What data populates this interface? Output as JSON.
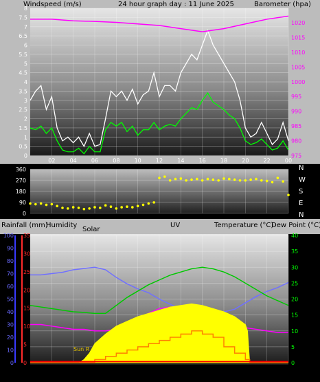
{
  "header": {
    "windspeed_label": "Windspeed (m/s)",
    "graph_title": "24 hour graph day : 11 June 2025",
    "barometer_label": "Barometer (hpa)"
  },
  "compass": [
    "N",
    "W",
    "S",
    "E",
    "N"
  ],
  "bottom_header": {
    "rainfall_label": "Rainfall (mm)",
    "humidity_label": "Humidity",
    "solar_label": "Solar",
    "uv_label": "UV",
    "temperature_label": "Temperature (°C)",
    "dewpoint_label": "Dew Point (°C)"
  },
  "sunrise_label": "Sun R",
  "colors": {
    "gust": "#ffffff",
    "wind_avg": "#00ff00",
    "barometer": "#ff00ff",
    "direction": "#ffff00",
    "solar": "#ffff00",
    "temperature": "#00c800",
    "dewpoint": "#ff00ff",
    "humidity": "#7070ff",
    "uv": "#ff8000",
    "rain": "#ff0000"
  },
  "chart_data": [
    {
      "type": "line",
      "title": "24 hour graph day : 11 June 2025",
      "x_ticks": [
        "02",
        "04",
        "06",
        "08",
        "10",
        "12",
        "14",
        "16",
        "18",
        "20",
        "22",
        "00"
      ],
      "xlim": [
        0,
        24
      ],
      "left_axis": {
        "label": "Windspeed (m/s)",
        "ylim": [
          0,
          8
        ],
        "ticks": [
          "0",
          "0.5",
          "1",
          "1.5",
          "2",
          "2.5",
          "3",
          "3.5",
          "4",
          "4.5",
          "5",
          "5.5",
          "6",
          "6.5",
          "7",
          "7.5",
          "8"
        ]
      },
      "right_axis": {
        "label": "Barometer (hpa)",
        "ylim": [
          975,
          1022
        ],
        "ticks": [
          "975",
          "980",
          "985",
          "990",
          "995",
          "1000",
          "1005",
          "1010",
          "1015",
          "1020"
        ]
      },
      "series": [
        {
          "axis": "left",
          "color": "#ffffff",
          "x": [
            0,
            0.5,
            1,
            1.5,
            2,
            2.5,
            3,
            3.5,
            4,
            4.5,
            5,
            5.5,
            6,
            6.5,
            7,
            7.5,
            8,
            8.5,
            9,
            9.5,
            10,
            10.5,
            11,
            11.5,
            12,
            12.5,
            13,
            13.5,
            14,
            14.5,
            15,
            15.5,
            16,
            16.5,
            17,
            17.5,
            18,
            18.5,
            19,
            19.5,
            20,
            20.5,
            21,
            21.5,
            22,
            22.5,
            23,
            23.5,
            24
          ],
          "values": [
            3,
            3.5,
            3.8,
            2.5,
            3.2,
            1.5,
            0.8,
            1,
            0.7,
            1,
            0.5,
            1.2,
            0.5,
            0.6,
            2,
            3.5,
            3.2,
            3.5,
            3,
            3.6,
            2.8,
            3.3,
            3.5,
            4.5,
            3.2,
            3.8,
            3.8,
            3.5,
            4.5,
            5,
            5.5,
            5.2,
            6,
            6.8,
            6,
            5.5,
            5,
            4.5,
            4,
            3,
            1.5,
            1,
            1.2,
            1.8,
            1.2,
            0.6,
            0.9,
            1.8,
            0.8
          ]
        },
        {
          "axis": "left",
          "color": "#00ff00",
          "x": [
            0,
            0.5,
            1,
            1.5,
            2,
            2.5,
            3,
            3.5,
            4,
            4.5,
            5,
            5.5,
            6,
            6.5,
            7,
            7.5,
            8,
            8.5,
            9,
            9.5,
            10,
            10.5,
            11,
            11.5,
            12,
            12.5,
            13,
            13.5,
            14,
            14.5,
            15,
            15.5,
            16,
            16.5,
            17,
            17.5,
            18,
            18.5,
            19,
            19.5,
            20,
            20.5,
            21,
            21.5,
            22,
            22.5,
            23,
            23.5,
            24
          ],
          "values": [
            1.5,
            1.4,
            1.6,
            1.2,
            1.5,
            0.8,
            0.3,
            0.2,
            0.2,
            0.4,
            0.1,
            0.5,
            0.2,
            0.2,
            1.4,
            1.8,
            1.6,
            1.8,
            1.3,
            1.6,
            1.1,
            1.4,
            1.4,
            1.8,
            1.4,
            1.6,
            1.7,
            1.6,
            2,
            2.3,
            2.6,
            2.5,
            3,
            3.4,
            2.9,
            2.7,
            2.5,
            2.2,
            2,
            1.5,
            0.8,
            0.6,
            0.7,
            0.9,
            0.6,
            0.3,
            0.4,
            0.8,
            0.3
          ]
        },
        {
          "axis": "right",
          "color": "#ff00ff",
          "x": [
            0,
            2,
            4,
            6,
            8,
            10,
            12,
            14,
            16,
            18,
            20,
            22,
            24
          ],
          "values": [
            1018.5,
            1018.5,
            1018,
            1017.8,
            1017.5,
            1017,
            1016.5,
            1015.5,
            1014.5,
            1015.5,
            1017,
            1018.5,
            1019.5
          ]
        }
      ]
    },
    {
      "type": "scatter",
      "x_ticks": [
        "02",
        "04",
        "06",
        "08",
        "10",
        "12",
        "14",
        "16",
        "18",
        "20",
        "22",
        "00"
      ],
      "xlim": [
        0,
        24
      ],
      "ylim": [
        0,
        360
      ],
      "y_ticks": [
        "0",
        "90",
        "180",
        "270",
        "360"
      ],
      "series": [
        {
          "color": "#ffff00",
          "x": [
            0,
            0.5,
            1,
            1.5,
            2,
            2.5,
            3,
            3.5,
            4,
            4.5,
            5,
            5.5,
            6,
            6.5,
            7,
            7.5,
            8,
            8.5,
            9,
            9.5,
            10,
            10.5,
            11,
            11.5,
            12,
            12.5,
            13,
            13.5,
            14,
            14.5,
            15,
            15.5,
            16,
            16.5,
            17,
            17.5,
            18,
            18.5,
            19,
            19.5,
            20,
            20.5,
            21,
            21.5,
            22,
            22.5,
            23,
            23.5,
            24
          ],
          "values": [
            80,
            75,
            80,
            70,
            75,
            60,
            45,
            40,
            50,
            45,
            35,
            40,
            50,
            45,
            65,
            55,
            40,
            50,
            55,
            50,
            60,
            70,
            80,
            90,
            290,
            300,
            270,
            280,
            285,
            270,
            275,
            280,
            270,
            280,
            275,
            270,
            285,
            280,
            275,
            270,
            270,
            275,
            280,
            270,
            265,
            255,
            290,
            260,
            150
          ]
        }
      ]
    },
    {
      "type": "line",
      "x_ticks": [
        "02",
        "04",
        "06",
        "08",
        "10",
        "12",
        "14",
        "16",
        "18",
        "20",
        "22",
        "00"
      ],
      "xlim": [
        0,
        24
      ],
      "axes": {
        "rainfall": {
          "label": "Rainfall (mm)",
          "ylim": [
            0,
            35
          ],
          "ticks": [
            "0",
            "5",
            "10",
            "15",
            "20",
            "25",
            "30",
            "35"
          ]
        },
        "humidity": {
          "label": "Humidity",
          "ylim": [
            0,
            100
          ],
          "ticks": [
            "0",
            "10",
            "20",
            "30",
            "40",
            "50",
            "60",
            "70",
            "80",
            "90",
            "100"
          ]
        },
        "temperature": {
          "label": "Temperature (°C)",
          "ylim": [
            0,
            40
          ],
          "ticks": [
            "0",
            "5",
            "10",
            "15",
            "20",
            "25",
            "30",
            "35",
            "40"
          ]
        }
      },
      "series": [
        {
          "axis": "humidity",
          "color": "#7070ff",
          "x": [
            0,
            1,
            2,
            3,
            4,
            5,
            6,
            7,
            8,
            9,
            10,
            11,
            12,
            13,
            14,
            15,
            16,
            17,
            18,
            19,
            20,
            21,
            22,
            23,
            24
          ],
          "values": [
            69,
            69,
            70,
            71,
            73,
            74,
            75,
            73,
            67,
            62,
            58,
            55,
            50,
            46,
            42,
            40,
            39,
            39,
            40,
            42,
            47,
            52,
            56,
            59,
            63
          ]
        },
        {
          "axis": "temperature",
          "color": "#00c800",
          "x": [
            0,
            1,
            2,
            3,
            4,
            5,
            6,
            7,
            8,
            9,
            10,
            11,
            12,
            13,
            14,
            15,
            16,
            17,
            18,
            19,
            20,
            21,
            22,
            23,
            24
          ],
          "values": [
            18,
            17.5,
            17,
            16.5,
            16,
            15.8,
            15.5,
            15.5,
            18,
            20.5,
            22.5,
            24.5,
            26,
            27.5,
            28.5,
            29.5,
            30,
            29.5,
            28.5,
            27,
            25,
            23,
            21,
            19.5,
            18
          ]
        },
        {
          "axis": "temperature",
          "color": "#ff00ff",
          "x": [
            0,
            1,
            2,
            3,
            4,
            5,
            6,
            7,
            8,
            9,
            10,
            11,
            12,
            13,
            14,
            15,
            16,
            17,
            18,
            19,
            20,
            21,
            22,
            23,
            24
          ],
          "values": [
            12,
            12,
            11.5,
            11,
            10.5,
            10.5,
            10,
            10,
            10.5,
            12,
            14,
            15.5,
            17,
            17.5,
            17.5,
            17.5,
            16.5,
            15.5,
            14,
            12,
            11,
            10.5,
            10,
            9.5,
            9.5
          ]
        },
        {
          "axis": "temperature",
          "color": "#ffff00",
          "fill": true,
          "x": [
            0,
            3,
            4.5,
            5,
            5.5,
            6,
            7,
            8,
            9,
            10,
            11,
            12,
            13,
            14,
            15,
            16,
            17,
            18,
            19,
            20,
            20.2,
            20.4,
            21,
            24
          ],
          "values": [
            0,
            0,
            0,
            1,
            3,
            6,
            9,
            11.5,
            13,
            14.5,
            15.5,
            16.5,
            17.5,
            18,
            18.5,
            18,
            17,
            16,
            14.5,
            12,
            10,
            0,
            0,
            0
          ]
        },
        {
          "axis": "temperature",
          "color": "#ff8000",
          "step": true,
          "x": [
            0,
            5,
            6,
            7,
            8,
            9,
            10,
            11,
            12,
            13,
            14,
            15,
            16,
            17,
            18,
            19,
            20,
            20.4,
            24
          ],
          "values": [
            0,
            0,
            1,
            2,
            3,
            4,
            5,
            6,
            7,
            8,
            9,
            10,
            9,
            8,
            5,
            3,
            1,
            0,
            0
          ]
        },
        {
          "axis": "rainfall",
          "color": "#ff0000",
          "x": [
            0,
            24
          ],
          "values": [
            0.3,
            0.3
          ]
        }
      ]
    }
  ]
}
